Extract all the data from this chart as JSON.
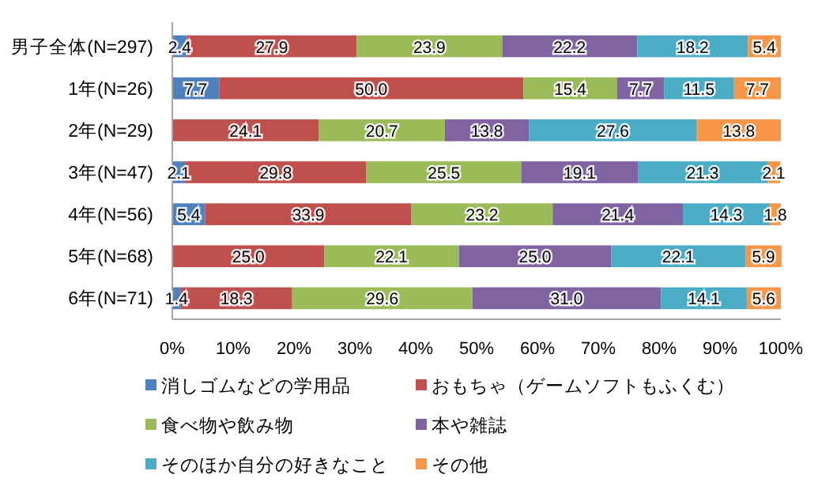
{
  "chart_data": {
    "type": "bar",
    "orientation": "horizontal",
    "stacked": true,
    "legend": "bottom",
    "grid": false,
    "categories": [
      "男子全体(N=297)",
      "1年(N=26)",
      "2年(N=29)",
      "3年(N=47)",
      "4年(N=56)",
      "5年(N=68)",
      "6年(N=71)"
    ],
    "xlim": [
      0,
      100
    ],
    "xticks": [
      {
        "value": 0,
        "label": "0%"
      },
      {
        "value": 10,
        "label": "10%"
      },
      {
        "value": 20,
        "label": "20%"
      },
      {
        "value": 30,
        "label": "30%"
      },
      {
        "value": 40,
        "label": "40%"
      },
      {
        "value": 50,
        "label": "50%"
      },
      {
        "value": 60,
        "label": "60%"
      },
      {
        "value": 70,
        "label": "70%"
      },
      {
        "value": 80,
        "label": "80%"
      },
      {
        "value": 90,
        "label": "90%"
      },
      {
        "value": 100,
        "label": "100%"
      }
    ],
    "series": [
      {
        "name": "消しゴムなどの学用品",
        "color": "#4f81bd",
        "values": [
          2.4,
          7.7,
          null,
          2.1,
          5.4,
          null,
          1.4
        ],
        "value_labels": [
          "2.4",
          "7.7",
          null,
          "2.1",
          "5.4",
          null,
          "1.4"
        ]
      },
      {
        "name": "おもちゃ（ゲームソフトもふくむ）",
        "color": "#c0504d",
        "values": [
          27.9,
          50.0,
          24.1,
          29.8,
          33.9,
          25.0,
          18.3
        ],
        "value_labels": [
          "27.9",
          "50.0",
          "24.1",
          "29.8",
          "33.9",
          "25.0",
          "18.3"
        ]
      },
      {
        "name": "食べ物や飲み物",
        "color": "#9bbb59",
        "values": [
          23.9,
          15.4,
          20.7,
          25.5,
          23.2,
          22.1,
          29.6
        ],
        "value_labels": [
          "23.9",
          "15.4",
          "20.7",
          "25.5",
          "23.2",
          "22.1",
          "29.6"
        ]
      },
      {
        "name": "本や雑誌",
        "color": "#8064a2",
        "values": [
          22.2,
          7.7,
          13.8,
          19.1,
          21.4,
          25.0,
          31.0
        ],
        "value_labels": [
          "22.2",
          "7.7",
          "13.8",
          "19.1",
          "21.4",
          "25.0",
          "31.0"
        ]
      },
      {
        "name": "そのほか自分の好きなこと",
        "color": "#4bacc6",
        "values": [
          18.2,
          11.5,
          27.6,
          21.3,
          14.3,
          22.1,
          14.1
        ],
        "value_labels": [
          "18.2",
          "11.5",
          "27.6",
          "21.3",
          "14.3",
          "22.1",
          "14.1"
        ]
      },
      {
        "name": "その他",
        "color": "#f79646",
        "values": [
          5.4,
          7.7,
          13.8,
          2.1,
          1.8,
          5.9,
          5.6
        ],
        "value_labels": [
          "5.4",
          "7.7",
          "13.8",
          "2.1",
          "1.8",
          "5.9",
          "5.6"
        ]
      }
    ]
  }
}
